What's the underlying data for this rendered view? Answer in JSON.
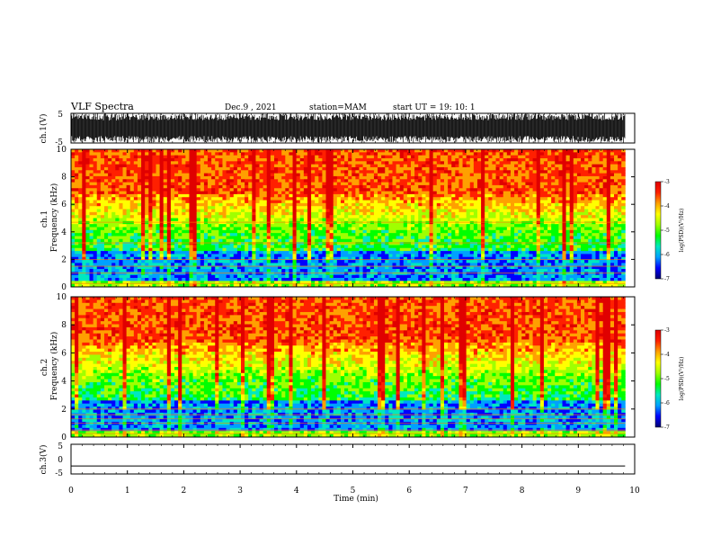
{
  "header": {
    "title": "VLF Spectra",
    "date": "Dec.9 , 2021",
    "station": "station=MAM",
    "start": "start UT = 19: 10: 1"
  },
  "chart_data": [
    {
      "type": "line",
      "panel": "ch1-waveform",
      "ylabel": "ch.1(V)",
      "ylim": [
        -5,
        5
      ],
      "yticks": [
        "5",
        "-5"
      ],
      "xlim": [
        0,
        10
      ],
      "note_visual": "dense black noise filling nearly the full -5..5 V range"
    },
    {
      "type": "heatmap",
      "panel": "ch1-spectrogram",
      "ylabel": "ch.1 Frequency (kHz)",
      "ylim": [
        0,
        10
      ],
      "yticks": [
        "0",
        "2",
        "4",
        "6",
        "8",
        "10"
      ],
      "xlim": [
        0,
        9.83
      ],
      "colorbar": {
        "label": "log(PSD)(V²/Hz)",
        "range": [
          -7,
          -3
        ],
        "ticks": [
          "-3",
          "-4",
          "-5",
          "-6",
          "-7"
        ]
      },
      "features": {
        "hum_lines_khz": [
          0.25,
          1.0,
          1.5,
          2.0,
          3.2,
          4.7
        ],
        "high_band_khz": [
          6.5,
          10
        ]
      }
    },
    {
      "type": "heatmap",
      "panel": "ch2-spectrogram",
      "ylabel": "ch.2 Frequency (kHz)",
      "ylim": [
        0,
        10
      ],
      "yticks": [
        "0",
        "2",
        "4",
        "6",
        "8",
        "10"
      ],
      "xlim": [
        0,
        9.83
      ],
      "colorbar": {
        "label": "log(PSD)(V²/Hz)",
        "range": [
          -7,
          -3
        ],
        "ticks": [
          "-3",
          "-4",
          "-5",
          "-6",
          "-7"
        ]
      },
      "features": {
        "hum_lines_khz": [
          0.25,
          0.5,
          1.0,
          1.3,
          1.6,
          2.0
        ],
        "high_band_khz": [
          6.5,
          10
        ]
      }
    },
    {
      "type": "line",
      "panel": "ch3-waveform",
      "ylabel": "ch.3(V)",
      "ylim": [
        -5,
        5
      ],
      "yticks": [
        "5",
        "0",
        "-5"
      ],
      "xlim": [
        0,
        10
      ],
      "x": [
        0,
        9.83
      ],
      "y": [
        -2.3,
        -2.3
      ]
    }
  ],
  "xaxis": {
    "label": "Time (min)",
    "ticks": [
      "0",
      "1",
      "2",
      "3",
      "4",
      "5",
      "6",
      "7",
      "8",
      "9",
      "10"
    ]
  },
  "colors": {
    "colormap": [
      "#000070",
      "#0000ff",
      "#00a0ff",
      "#00e8c0",
      "#00ff00",
      "#a0ff00",
      "#ffff00",
      "#ffa000",
      "#ff2000",
      "#e00000"
    ],
    "axis": "#000000"
  }
}
